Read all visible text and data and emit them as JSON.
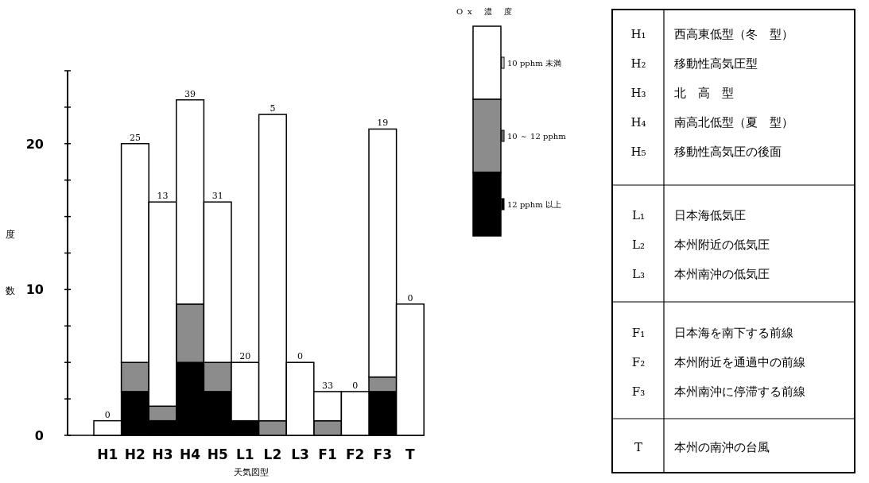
{
  "chart_data": {
    "type": "bar",
    "stacked": true,
    "xlabel": "天気図型",
    "ylabel": "度数",
    "legend_title": "Ox 濃 度",
    "legend": "top right",
    "grid": false,
    "categories": [
      "H1",
      "H2",
      "H3",
      "H4",
      "H5",
      "L1",
      "L2",
      "L3",
      "F1",
      "F2",
      "F3",
      "T"
    ],
    "ylim": [
      0,
      25
    ],
    "yticks": [
      0,
      {
        "value": 2.5,
        "label": null
      },
      {
        "value": 5,
        "label": null
      },
      {
        "value": 7.5,
        "label": null
      },
      10,
      {
        "value": 12.5,
        "label": null
      },
      {
        "value": 15,
        "label": null
      },
      {
        "value": 17.5,
        "label": null
      },
      20,
      {
        "value": 22.5,
        "label": null
      },
      {
        "value": 25,
        "label": null
      }
    ],
    "series": [
      {
        "name": "12 pphm 以上",
        "color": "#000000",
        "values": [
          0,
          3,
          1,
          5,
          3,
          1,
          0,
          0,
          0,
          0,
          3,
          0
        ]
      },
      {
        "name": "10 ～ 12 pphm",
        "color": "#8c8c8c",
        "values": [
          0,
          2,
          1,
          4,
          2,
          0,
          1,
          0,
          1,
          0,
          1,
          0
        ]
      },
      {
        "name": "10 pphm 未満",
        "color": "#ffffff",
        "values": [
          1,
          15,
          14,
          14,
          11,
          4,
          21,
          5,
          2,
          3,
          17,
          9
        ]
      }
    ],
    "annotations": [
      {
        "text": "0",
        "x": "H1",
        "y": 1
      },
      {
        "text": "25",
        "x": "H2",
        "y": 20
      },
      {
        "text": "13",
        "x": "H3",
        "y": 16
      },
      {
        "text": "39",
        "x": "H4",
        "y": 23
      },
      {
        "text": "31",
        "x": "H5",
        "y": 16
      },
      {
        "text": "20",
        "x": "L1",
        "y": 5
      },
      {
        "text": "5",
        "x": "L2",
        "y": 22
      },
      {
        "text": "0",
        "x": "L3",
        "y": 5
      },
      {
        "text": "33",
        "x": "F1",
        "y": 3
      },
      {
        "text": "0",
        "x": "F2",
        "y": 3
      },
      {
        "text": "19",
        "x": "F3",
        "y": 21
      },
      {
        "text": "0",
        "x": "T",
        "y": 9
      },
      "H₁ 西高東低型（冬　型）",
      "H₂ 移動性高気圧型",
      "H₃ 北　高　型",
      "H₄ 南高北低型（夏　型）",
      "H₅ 移動性高気圧の後面",
      "L₁ 日本海低気圧",
      "L₂ 本州附近の低気圧",
      "L₃ 本州南沖の低気圧",
      "F₁ 日本海を南下する前線",
      "F₂ 本州附近を通過中の前線",
      "F₃ 本州南沖に停滞する前線",
      "T 本州の南沖の台風"
    ]
  }
}
